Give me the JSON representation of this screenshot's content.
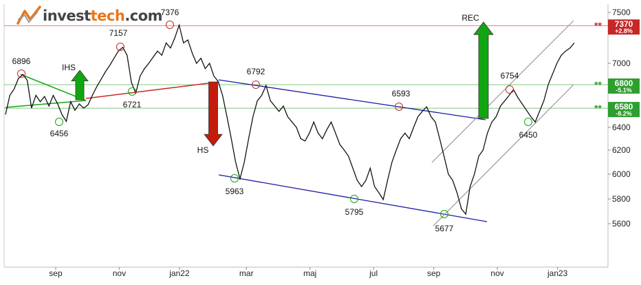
{
  "brand": {
    "prefix": "invest",
    "accent": "tech",
    "suffix": ".com"
  },
  "chart_data": {
    "type": "line",
    "ylim": [
      5400,
      7560
    ],
    "yticks": [
      5600,
      5800,
      6000,
      6200,
      6400,
      7000,
      7500
    ],
    "xticks": [
      {
        "label": "sep",
        "idx": 15
      },
      {
        "label": "nov",
        "idx": 34
      },
      {
        "label": "jan22",
        "idx": 52
      },
      {
        "label": "mar",
        "idx": 72
      },
      {
        "label": "maj",
        "idx": 91
      },
      {
        "label": "jul",
        "idx": 110
      },
      {
        "label": "sep",
        "idx": 128
      },
      {
        "label": "nov",
        "idx": 147
      },
      {
        "label": "jan23",
        "idx": 165
      }
    ],
    "series": [
      {
        "values": [
          6520,
          6700,
          6760,
          6860,
          6896,
          6840,
          6580,
          6700,
          6640,
          6690,
          6600,
          6700,
          6620,
          6520,
          6456,
          6640,
          6560,
          6620,
          6580,
          6610,
          6700,
          6780,
          6850,
          6920,
          6980,
          7050,
          7120,
          7157,
          7080,
          6820,
          6721,
          6880,
          6950,
          7000,
          7060,
          7120,
          7080,
          7200,
          7150,
          7250,
          7376,
          7200,
          7230,
          7100,
          7000,
          7050,
          6950,
          7000,
          6880,
          6830,
          6700,
          6500,
          6300,
          6100,
          5963,
          6100,
          6300,
          6500,
          6650,
          6700,
          6792,
          6650,
          6600,
          6550,
          6600,
          6500,
          6450,
          6400,
          6300,
          6280,
          6350,
          6450,
          6350,
          6300,
          6380,
          6450,
          6350,
          6250,
          6200,
          6150,
          6050,
          5950,
          5900,
          5950,
          6050,
          5900,
          5850,
          5795,
          5950,
          6100,
          6200,
          6300,
          6350,
          6300,
          6400,
          6500,
          6550,
          6593,
          6500,
          6450,
          6300,
          6150,
          6000,
          5950,
          5850,
          5720,
          5677,
          5900,
          6000,
          6150,
          6200,
          6350,
          6450,
          6500,
          6600,
          6650,
          6700,
          6754,
          6680,
          6620,
          6560,
          6500,
          6450,
          6550,
          6650,
          6800,
          6900,
          7000,
          7080,
          7120,
          7150,
          7200
        ],
        "xi": [
          0,
          2,
          4,
          6,
          7,
          9,
          11,
          13,
          15,
          16,
          17,
          18,
          20,
          22,
          24,
          26,
          28,
          30,
          32,
          34,
          36,
          38,
          40,
          42,
          44,
          46,
          48,
          50,
          52,
          54,
          56,
          58,
          60,
          62,
          64,
          66,
          68,
          70,
          72,
          74,
          76,
          78,
          80,
          82,
          84,
          86,
          88,
          90,
          92,
          94,
          96,
          98,
          100,
          102,
          104,
          106,
          108,
          110,
          112,
          114,
          116,
          118,
          120,
          122,
          124,
          126,
          128,
          130,
          132,
          134,
          136,
          138,
          140,
          142,
          144,
          146,
          148,
          150,
          152,
          154,
          156,
          158,
          160,
          162,
          164,
          166,
          168,
          170,
          172,
          174,
          176,
          178,
          180,
          182,
          184,
          186,
          188,
          190,
          192,
          194,
          196,
          198,
          200,
          202,
          204,
          206,
          208,
          210,
          212,
          214,
          216,
          218,
          220,
          222,
          224,
          226,
          228,
          230,
          232,
          234,
          236,
          238,
          240,
          242,
          244,
          246,
          248,
          250,
          252,
          254,
          256,
          258,
          260
        ]
      }
    ],
    "levels": [
      {
        "value": 7370,
        "label": "7370",
        "pct": "+2.8%",
        "color": "#c62828"
      },
      {
        "value": 6800,
        "label": "6800",
        "pct": "-5.1%",
        "color": "#2e9e2e"
      },
      {
        "value": 6580,
        "label": "6580",
        "pct": "-8.2%",
        "color": "#2e9e2e"
      }
    ],
    "annotations": [
      {
        "text": "6896",
        "v": 6896,
        "i": 27
      },
      {
        "text": "6456",
        "v": 6456,
        "i": 83
      },
      {
        "text": "7157",
        "v": 7157,
        "i": 175
      },
      {
        "text": "6721",
        "v": 6721,
        "i": 192
      },
      {
        "text": "7376",
        "v": 7376,
        "i": 247
      },
      {
        "text": "6792",
        "v": 6792,
        "i": 372
      },
      {
        "text": "5963",
        "v": 5963,
        "i": 340
      },
      {
        "text": "5795",
        "v": 5795,
        "i": 515
      },
      {
        "text": "6593",
        "v": 6593,
        "i": 578
      },
      {
        "text": "5677",
        "v": 5677,
        "i": 647
      },
      {
        "text": "6754",
        "v": 6754,
        "i": 741
      },
      {
        "text": "6450",
        "v": 6450,
        "i": 768
      }
    ],
    "patterns": [
      {
        "text": "IHS",
        "direction": "up"
      },
      {
        "text": "HS",
        "direction": "down"
      },
      {
        "text": "REC",
        "direction": "up"
      }
    ]
  },
  "colors": {
    "up": "#11a611",
    "down": "#c62828",
    "channel": "#1a1aa8",
    "price": "#111111"
  }
}
